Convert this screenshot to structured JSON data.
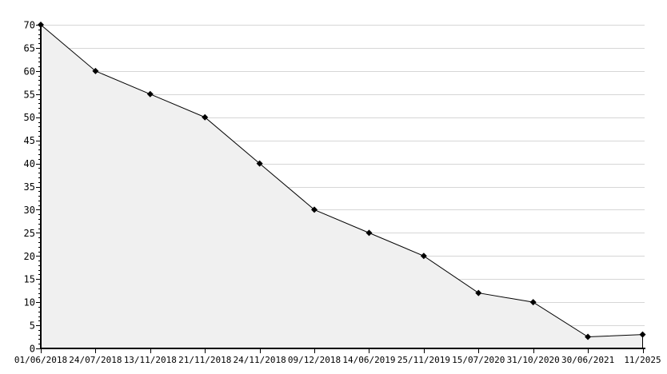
{
  "chart_data": {
    "type": "area",
    "title": "",
    "xlabel": "",
    "ylabel": "",
    "x": [
      "01/06/2018",
      "24/07/2018",
      "13/11/2018",
      "21/11/2018",
      "24/11/2018",
      "09/12/2018",
      "14/06/2019",
      "25/11/2019",
      "15/07/2020",
      "31/10/2020",
      "30/06/2021",
      "11/2025"
    ],
    "values": [
      70,
      60,
      55,
      50,
      40,
      30,
      25,
      20,
      12,
      10,
      2.5,
      3
    ],
    "ylim": [
      0,
      70
    ],
    "y_major_ticks": [
      0,
      5,
      10,
      15,
      20,
      25,
      30,
      35,
      40,
      45,
      50,
      55,
      60,
      65,
      70
    ],
    "y_minor_step": 1,
    "grid": true,
    "legend_position": "none",
    "marker": "diamond",
    "colors": {
      "background": "#ffffff",
      "gridline": "#d6d6d6",
      "area_fill": "#f0f0f0",
      "line": "#000000",
      "marker": "#000000",
      "axis": "#000000",
      "tick_label": "#000000"
    }
  }
}
